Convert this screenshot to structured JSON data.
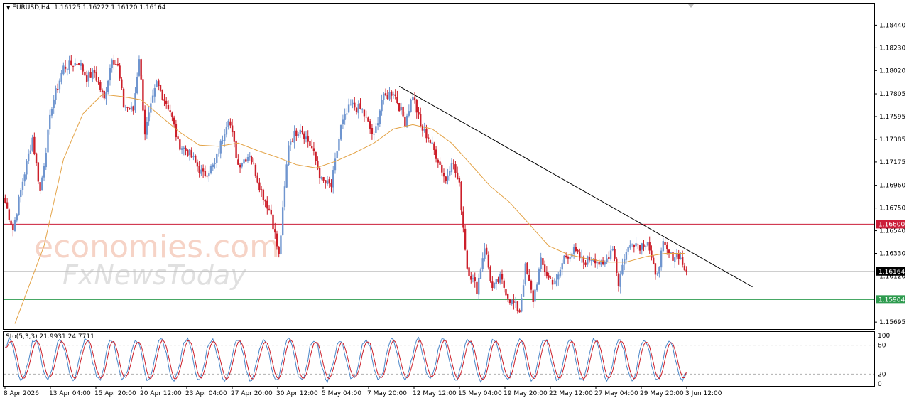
{
  "header": {
    "symbol": "EURUSD,H4",
    "ohlc": "1.16125 1.16222 1.16120 1.16164"
  },
  "stochastic": {
    "label": "Sto(5,3,3) 21.9931 24.7711",
    "levels": [
      "100",
      "80",
      "20",
      "0"
    ]
  },
  "watermark": {
    "line1": "economies.com",
    "line2": "FxNewsToday"
  },
  "colors": {
    "bull": "#6f95cf",
    "bear": "#cc1f2a",
    "ma": "#e3a245",
    "trendline": "#000000",
    "resistance": "#cc1f3a",
    "support": "#2e9b4f",
    "current": "#bdbdbd",
    "sto_main": "#4a86c8",
    "sto_signal": "#cc1f2a"
  },
  "chart_data": {
    "type": "candlestick",
    "symbol": "EURUSD",
    "timeframe": "H4",
    "ylim": [
      1.1565,
      1.1862
    ],
    "y_ticks": [
      1.1844,
      1.1823,
      1.1802,
      1.17805,
      1.17595,
      1.17385,
      1.17175,
      1.1696,
      1.1675,
      1.1654,
      1.1633,
      1.1612,
      1.15695
    ],
    "y_tick_labels": [
      "1.18440",
      "1.18230",
      "1.18020",
      "1.17805",
      "1.17595",
      "1.17385",
      "1.17175",
      "1.16960",
      "1.16750",
      "1.16540",
      "1.16330",
      "1.16120",
      "1.15695"
    ],
    "x_tick_labels": [
      "8 Apr 2026",
      "13 Apr 04:00",
      "15 Apr 20:00",
      "20 Apr 12:00",
      "23 Apr 04:00",
      "27 Apr 20:00",
      "30 Apr 12:00",
      "5 May 04:00",
      "7 May 20:00",
      "12 May 12:00",
      "15 May 04:00",
      "19 May 20:00",
      "22 May 12:00",
      "27 May 04:00",
      "29 May 20:00",
      "3 Jun 12:00"
    ],
    "anchors": [
      [
        0,
        1.168
      ],
      [
        4,
        1.1655
      ],
      [
        9,
        1.17
      ],
      [
        14,
        1.174
      ],
      [
        18,
        1.169
      ],
      [
        24,
        1.177
      ],
      [
        30,
        1.1805
      ],
      [
        38,
        1.181
      ],
      [
        42,
        1.1795
      ],
      [
        46,
        1.18
      ],
      [
        51,
        1.1775
      ],
      [
        55,
        1.1815
      ],
      [
        58,
        1.1805
      ],
      [
        61,
        1.177
      ],
      [
        66,
        1.1765
      ],
      [
        69,
        1.1815
      ],
      [
        72,
        1.1745
      ],
      [
        78,
        1.179
      ],
      [
        85,
        1.1765
      ],
      [
        89,
        1.1735
      ],
      [
        95,
        1.1725
      ],
      [
        102,
        1.1705
      ],
      [
        108,
        1.1715
      ],
      [
        115,
        1.176
      ],
      [
        120,
        1.1715
      ],
      [
        126,
        1.1725
      ],
      [
        132,
        1.169
      ],
      [
        137,
        1.167
      ],
      [
        141,
        1.163
      ],
      [
        146,
        1.1735
      ],
      [
        152,
        1.175
      ],
      [
        158,
        1.173
      ],
      [
        163,
        1.17
      ],
      [
        168,
        1.1695
      ],
      [
        173,
        1.175
      ],
      [
        178,
        1.177
      ],
      [
        184,
        1.1765
      ],
      [
        190,
        1.174
      ],
      [
        194,
        1.1775
      ],
      [
        200,
        1.1783
      ],
      [
        206,
        1.1755
      ],
      [
        210,
        1.178
      ],
      [
        214,
        1.175
      ],
      [
        218,
        1.174
      ],
      [
        223,
        1.172
      ],
      [
        227,
        1.17
      ],
      [
        230,
        1.172
      ],
      [
        234,
        1.1695
      ],
      [
        238,
        1.162
      ],
      [
        243,
        1.16
      ],
      [
        247,
        1.164
      ],
      [
        251,
        1.16
      ],
      [
        255,
        1.161
      ],
      [
        260,
        1.159
      ],
      [
        265,
        1.158
      ],
      [
        268,
        1.162
      ],
      [
        272,
        1.159
      ],
      [
        276,
        1.1625
      ],
      [
        280,
        1.161
      ],
      [
        284,
        1.1605
      ],
      [
        288,
        1.163
      ],
      [
        293,
        1.1635
      ],
      [
        298,
        1.1625
      ],
      [
        303,
        1.163
      ],
      [
        308,
        1.162
      ],
      [
        313,
        1.164
      ],
      [
        316,
        1.1605
      ],
      [
        319,
        1.163
      ],
      [
        323,
        1.1645
      ],
      [
        327,
        1.164
      ],
      [
        331,
        1.1645
      ],
      [
        335,
        1.161
      ],
      [
        339,
        1.164
      ],
      [
        343,
        1.163
      ],
      [
        347,
        1.1632
      ],
      [
        351,
        1.1615
      ]
    ],
    "bars": 352,
    "last_close": 1.16164,
    "moving_average": {
      "name": "",
      "values": [
        [
          5,
          1.1568
        ],
        [
          20,
          1.164
        ],
        [
          30,
          1.172
        ],
        [
          40,
          1.1762
        ],
        [
          50,
          1.178
        ],
        [
          60,
          1.1778
        ],
        [
          70,
          1.1775
        ],
        [
          80,
          1.176
        ],
        [
          90,
          1.1745
        ],
        [
          100,
          1.1733
        ],
        [
          110,
          1.1732
        ],
        [
          120,
          1.1735
        ],
        [
          130,
          1.1728
        ],
        [
          140,
          1.1722
        ],
        [
          150,
          1.1715
        ],
        [
          160,
          1.1712
        ],
        [
          170,
          1.1718
        ],
        [
          180,
          1.1726
        ],
        [
          190,
          1.1735
        ],
        [
          200,
          1.1748
        ],
        [
          210,
          1.1752
        ],
        [
          220,
          1.1748
        ],
        [
          230,
          1.1735
        ],
        [
          240,
          1.1715
        ],
        [
          250,
          1.1695
        ],
        [
          260,
          1.168
        ],
        [
          270,
          1.166
        ],
        [
          280,
          1.164
        ],
        [
          290,
          1.1632
        ],
        [
          300,
          1.1628
        ],
        [
          310,
          1.1625
        ],
        [
          320,
          1.1625
        ],
        [
          330,
          1.163
        ],
        [
          340,
          1.1633
        ],
        [
          350,
          1.1633
        ]
      ]
    },
    "lines": {
      "resistance": 1.166,
      "support": 1.15904,
      "current": 1.16164,
      "trendline": [
        [
          203,
          1.17875
        ],
        [
          385,
          1.1602
        ]
      ]
    },
    "price_labels": [
      "1.16600",
      "1.16164",
      "1.15904"
    ],
    "stochastic": {
      "main_last": 21.9931,
      "signal_last": 24.7711,
      "levels": [
        20,
        80
      ],
      "range": [
        0,
        100
      ]
    }
  }
}
